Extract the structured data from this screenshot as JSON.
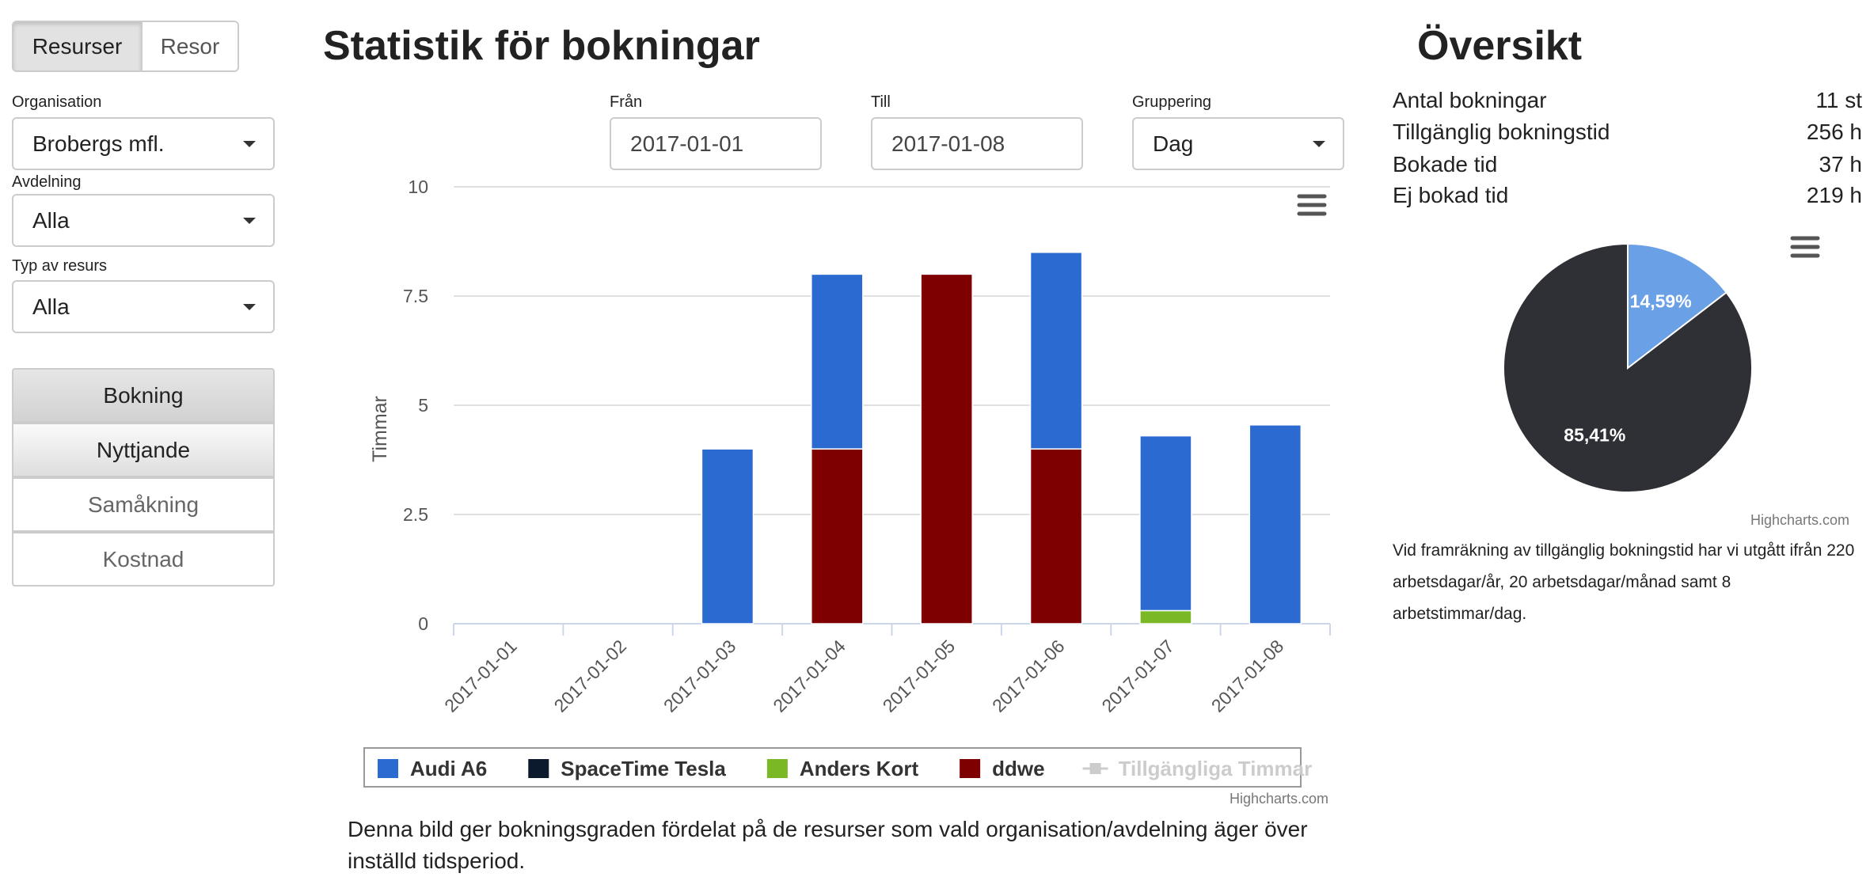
{
  "tabs": [
    "Resurser",
    "Resor"
  ],
  "filters_left": [
    {
      "label": "Organisation",
      "value": "Brobergs mfl."
    },
    {
      "label": "Avdelning",
      "value": "Alla"
    },
    {
      "label": "Typ av resurs",
      "value": "Alla"
    }
  ],
  "menu": [
    "Bokning",
    "Nyttjande",
    "Samåkning",
    "Kostnad"
  ],
  "header": {
    "title": "Statistik för bokningar"
  },
  "filters": [
    {
      "label": "Från",
      "value": "2017-01-01"
    },
    {
      "label": "Till",
      "value": "2017-01-08"
    },
    {
      "label": "Gruppering",
      "value": "Dag"
    }
  ],
  "chart_data": [
    {
      "type": "bar",
      "stacked": true,
      "y_label": "Timmar",
      "categories": [
        "2017-01-01",
        "2017-01-02",
        "2017-01-03",
        "2017-01-04",
        "2017-01-05",
        "2017-01-06",
        "2017-01-07",
        "2017-01-08"
      ],
      "series": [
        {
          "name": "Audi A6",
          "color": "#2b6bd1",
          "values": [
            0,
            0,
            4,
            4,
            0,
            4.5,
            4,
            4.55
          ]
        },
        {
          "name": "SpaceTime Tesla",
          "color": "#0c1a2e",
          "values": [
            0,
            0,
            0,
            0,
            0,
            0,
            0,
            0
          ]
        },
        {
          "name": "Anders Kort",
          "color": "#7ab826",
          "values": [
            0,
            0,
            0,
            0,
            0,
            0,
            0.3,
            0
          ]
        },
        {
          "name": "ddwe",
          "color": "#7f0000",
          "values": [
            0,
            0,
            0,
            4,
            8,
            4,
            0,
            0
          ]
        },
        {
          "name": "Tillgängliga Timmar",
          "color": "#cccccc",
          "visible": false,
          "values": [
            null,
            null,
            null,
            null,
            null,
            null,
            null,
            null
          ]
        }
      ],
      "ylim": [
        0,
        10
      ],
      "yticks": [
        0,
        2.5,
        5,
        7.5,
        10
      ],
      "grid": true,
      "credits": "Highcharts.com"
    },
    {
      "type": "pie",
      "values": [
        14.59,
        85.41
      ],
      "value_labels": [
        "14,59%",
        "85,41%"
      ],
      "colors": [
        "#6aa1e6",
        "#2f3035"
      ],
      "credits": "Highcharts.com"
    }
  ],
  "description": "Denna bild ger bokningsgraden fördelat på de resurser som vald organisation/avdelning äger över inställd tidsperiod.",
  "overview": {
    "title": "Översikt",
    "rows": [
      [
        "Antal bokningar",
        "11 st"
      ],
      [
        "Tillgänglig bokningstid",
        "256 h"
      ],
      [
        "Bokade tid",
        "37 h"
      ],
      [
        "Ej bokad tid",
        "219 h"
      ]
    ]
  },
  "note": "Vid framräkning av tillgänglig bokningstid har vi utgått ifrån 220 arbetsdagar/år, 20 arbetsdagar/månad samt 8 arbetstimmar/dag."
}
